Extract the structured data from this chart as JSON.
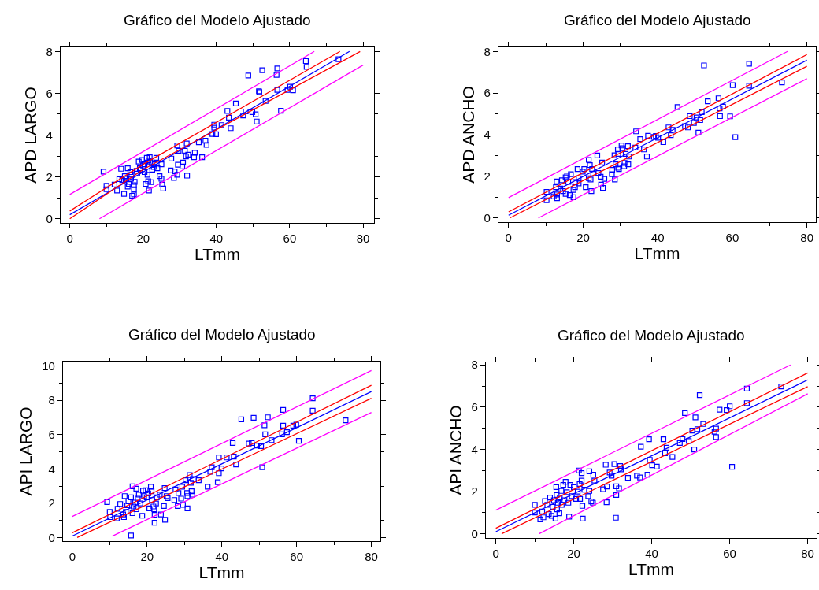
{
  "chart_data": [
    {
      "type": "scatter",
      "title": "Gráfico del Modelo Ajustado",
      "xlabel": "LTmm",
      "ylabel": "APD LARGO",
      "xlim": [
        -2.5,
        83
      ],
      "ylim": [
        -0.2,
        8.2
      ],
      "xticks": [
        0,
        20,
        40,
        60,
        80
      ],
      "yticks": [
        0,
        2,
        4,
        6,
        8
      ],
      "marker": "square",
      "grid": false,
      "series": [
        {
          "color": "#0000ff",
          "x": [
            9.2,
            10.0,
            10.0,
            12.2,
            12.9,
            13.5,
            14.0,
            14.8,
            15.0,
            15.2,
            15.8,
            16.1,
            16.5,
            17.0,
            17.5,
            17.5,
            17.5,
            17.7,
            18.2,
            18.8,
            19.1,
            19.7,
            20.0,
            20.4,
            20.7,
            21.0,
            21.2,
            21.4,
            21.6,
            21.8,
            21.9,
            22.2,
            22.5,
            22.9,
            23.6,
            23.9,
            24.5,
            25.0,
            25.0,
            25.2,
            25.5,
            27.5,
            27.7,
            28.4,
            28.6,
            29.3,
            29.3,
            29.5,
            29.7,
            30.7,
            30.9,
            31.4,
            31.7,
            31.9,
            32.0,
            32.3,
            33.9,
            34.1,
            35.2,
            36.1,
            37.0,
            37.3,
            38.9,
            39.4,
            39.4,
            39.9,
            41.4,
            43.0,
            43.4,
            43.9,
            45.3,
            47.3,
            48.0,
            48.7,
            49.8,
            50.7,
            51.0,
            51.6,
            51.7,
            52.5,
            53.4,
            56.4,
            56.6,
            56.6,
            57.6,
            59.4,
            60.1,
            60.9,
            64.4,
            64.6,
            73.3,
            14.3,
            15.4,
            16.8,
            18.4,
            19.3,
            20.4,
            21.5,
            22.4,
            23.2,
            15.8,
            16.7
          ],
          "values": [
            2.25,
            1.58,
            1.41,
            1.63,
            1.35,
            1.89,
            2.39,
            1.19,
            2.04,
            1.79,
            2.41,
            1.66,
            2.23,
            1.1,
            1.16,
            1.6,
            1.41,
            1.76,
            2.29,
            2.73,
            2.41,
            2.81,
            2.54,
            2.23,
            1.66,
            2.91,
            2.1,
            1.79,
            1.35,
            2.94,
            2.73,
            1.75,
            2.35,
            2.48,
            2.91,
            2.41,
            2.04,
            2.6,
            1.91,
            1.63,
            1.44,
            2.31,
            2.88,
            1.95,
            2.26,
            3.5,
            2.1,
            2.58,
            3.25,
            2.5,
            2.69,
            3.25,
            2.98,
            3.6,
            2.06,
            3.06,
            2.94,
            3.16,
            3.66,
            2.94,
            3.73,
            3.53,
            4.05,
            4.5,
            4.35,
            4.04,
            4.48,
            5.15,
            4.83,
            4.33,
            5.51,
            4.94,
            5.13,
            6.85,
            5.1,
            4.99,
            4.65,
            6.1,
            6.06,
            7.1,
            5.63,
            6.88,
            7.19,
            6.16,
            5.16,
            6.16,
            6.31,
            6.14,
            7.54,
            7.26,
            7.63,
            1.85,
            1.91,
            2.1,
            2.16,
            2.35,
            2.6,
            2.79,
            2.66,
            2.6,
            1.54,
            1.91
          ]
        },
        {
          "type": "line",
          "color": "#0000ff",
          "marker": "none",
          "x": [
            0,
            76.3
          ],
          "values": [
            0.19,
            8.0
          ]
        },
        {
          "type": "line",
          "color": "#ff0000",
          "marker": "none",
          "x": [
            0,
            20,
            73.7
          ],
          "values": [
            0.37,
            2.6,
            8.0
          ]
        },
        {
          "type": "line",
          "color": "#ff0000",
          "marker": "none",
          "x": [
            0,
            20,
            79.2
          ],
          "values": [
            0.0,
            2.35,
            8.0
          ]
        },
        {
          "type": "line",
          "color": "#ff00ff",
          "marker": "none",
          "x": [
            0,
            66.7
          ],
          "values": [
            1.16,
            8.0
          ]
        },
        {
          "type": "line",
          "color": "#ff00ff",
          "marker": "none",
          "x": [
            8.1,
            80
          ],
          "values": [
            0.0,
            7.35
          ]
        }
      ]
    },
    {
      "type": "scatter",
      "title": "Gráfico del Modelo Ajustado",
      "xlabel": "LTmm",
      "ylabel": "APD ANCHO",
      "xlim": [
        -2.7,
        82.4
      ],
      "ylim": [
        -0.2,
        8.2
      ],
      "xticks": [
        0,
        20,
        40,
        60,
        80
      ],
      "yticks": [
        0,
        2,
        4,
        6,
        8
      ],
      "marker": "square",
      "grid": false,
      "series": [
        {
          "color": "#0000ff",
          "x": [
            10.2,
            10.2,
            12.1,
            13.0,
            13.0,
            12.9,
            12.7,
            13.9,
            14.3,
            14.6,
            15.3,
            15.3,
            15.7,
            16.0,
            16.4,
            16.7,
            17.4,
            17.4,
            17.8,
            17.9,
            18.5,
            18.8,
            18.8,
            19.9,
            20.3,
            20.7,
            21.5,
            21.5,
            21.8,
            22.0,
            22.2,
            22.4,
            22.7,
            23.8,
            24.1,
            24.7,
            24.8,
            25.1,
            25.3,
            25.7,
            27.7,
            27.8,
            28.4,
            28.5,
            28.7,
            29.3,
            29.4,
            29.4,
            29.6,
            30.3,
            30.5,
            31.0,
            31.1,
            31.4,
            32.0,
            32.1,
            32.3,
            34.0,
            34.2,
            35.3,
            36.3,
            37.1,
            37.4,
            39.0,
            39.5,
            40.1,
            41.5,
            42.9,
            43.5,
            44.0,
            45.3,
            47.3,
            48.1,
            48.6,
            49.7,
            50.4,
            50.9,
            51.4,
            51.8,
            52.4,
            53.4,
            56.3,
            56.6,
            56.7,
            57.5,
            59.4,
            60.1,
            60.8,
            64.5,
            64.5,
            73.3
          ],
          "values": [
            1.25,
            0.85,
            1.04,
            0.95,
            1.13,
            1.75,
            1.48,
            1.41,
            1.81,
            1.29,
            1.16,
            1.95,
            2.04,
            1.73,
            1.1,
            2.1,
            1.0,
            1.35,
            1.48,
            1.73,
            2.35,
            1.66,
            1.91,
            2.23,
            2.35,
            1.48,
            2.79,
            1.91,
            2.54,
            1.85,
            1.29,
            2.35,
            2.13,
            3.0,
            2.16,
            1.98,
            1.6,
            2.66,
            1.44,
            1.88,
            2.1,
            2.31,
            3.01,
            1.85,
            2.58,
            3.29,
            3.08,
            2.41,
            2.35,
            3.48,
            3.35,
            2.48,
            2.64,
            3.08,
            3.45,
            2.58,
            2.95,
            3.38,
            4.16,
            3.79,
            3.29,
            2.95,
            3.95,
            3.89,
            3.94,
            3.85,
            3.64,
            4.35,
            3.98,
            4.23,
            5.33,
            4.41,
            4.35,
            4.89,
            4.56,
            4.83,
            4.1,
            4.7,
            5.08,
            7.33,
            5.6,
            5.75,
            5.26,
            4.89,
            5.35,
            4.88,
            6.38,
            3.88,
            7.41,
            6.35,
            6.51
          ]
        },
        {
          "type": "line",
          "color": "#0000ff",
          "marker": "none",
          "x": [
            0,
            80
          ],
          "values": [
            0.13,
            7.58
          ]
        },
        {
          "type": "line",
          "color": "#ff0000",
          "marker": "none",
          "x": [
            0,
            80
          ],
          "values": [
            0.29,
            7.85
          ]
        },
        {
          "type": "line",
          "color": "#ff0000",
          "marker": "none",
          "x": [
            0.35,
            80
          ],
          "values": [
            0.0,
            7.29
          ]
        },
        {
          "type": "line",
          "color": "#ff00ff",
          "marker": "none",
          "x": [
            0,
            74.8
          ],
          "values": [
            0.98,
            8.0
          ]
        },
        {
          "type": "line",
          "color": "#ff00ff",
          "marker": "none",
          "x": [
            8.0,
            80
          ],
          "values": [
            0.0,
            6.69
          ]
        }
      ]
    },
    {
      "type": "scatter",
      "title": "Gráfico del Modelo Ajustado",
      "xlabel": "LTmm",
      "ylabel": "API LARGO",
      "xlim": [
        -2.5,
        82.4
      ],
      "ylim": [
        -0.21,
        10.26
      ],
      "xticks": [
        0,
        20,
        40,
        60,
        80
      ],
      "yticks": [
        0,
        2,
        4,
        6,
        8,
        10
      ],
      "marker": "square",
      "grid": false,
      "series": [
        {
          "color": "#0000ff",
          "x": [
            9.3,
            10.0,
            10.1,
            11.9,
            12.1,
            12.8,
            14.0,
            13.6,
            13.8,
            14.3,
            14.7,
            15.0,
            15.7,
            15.7,
            16.1,
            16.1,
            16.4,
            16.8,
            17.1,
            17.1,
            17.5,
            17.8,
            18.2,
            18.7,
            18.9,
            19.2,
            19.6,
            19.9,
            20.3,
            20.6,
            21.0,
            21.2,
            21.3,
            21.7,
            21.9,
            22.0,
            22.0,
            22.4,
            22.6,
            23.4,
            23.7,
            24.5,
            24.7,
            24.8,
            25.2,
            25.5,
            27.3,
            27.6,
            28.2,
            28.4,
            29.1,
            29.4,
            29.6,
            30.3,
            30.7,
            30.8,
            30.8,
            31.4,
            31.7,
            31.9,
            32.1,
            32.2,
            33.8,
            36.2,
            36.9,
            37.3,
            38.9,
            39.2,
            39.2,
            39.9,
            41.3,
            42.9,
            43.2,
            43.8,
            45.2,
            47.2,
            48.0,
            48.5,
            49.4,
            50.5,
            50.8,
            51.4,
            51.6,
            52.3,
            53.3,
            56.1,
            56.4,
            56.4,
            57.4,
            59.1,
            59.9,
            60.6,
            64.3,
            64.3,
            73.1
          ],
          "values": [
            2.07,
            1.5,
            1.19,
            1.12,
            1.68,
            1.96,
            2.42,
            1.35,
            1.19,
            1.5,
            1.88,
            2.11,
            0.12,
            2.34,
            2.99,
            1.42,
            1.81,
            2.04,
            2.85,
            1.65,
            2.27,
            2.5,
            1.99,
            1.27,
            2.73,
            2.42,
            2.76,
            2.34,
            2.57,
            1.7,
            2.96,
            2.7,
            2.19,
            1.81,
            1.65,
            1.32,
            0.86,
            1.99,
            2.34,
            2.5,
            1.35,
            1.84,
            2.88,
            1.04,
            2.42,
            2.3,
            2.19,
            2.8,
            1.84,
            2.6,
            2.27,
            2.96,
            1.91,
            3.34,
            2.6,
            1.7,
            2.42,
            3.64,
            3.19,
            2.7,
            2.5,
            3.41,
            3.34,
            2.96,
            3.83,
            4.1,
            3.23,
            4.67,
            3.75,
            4.03,
            4.67,
            5.51,
            4.72,
            4.26,
            6.89,
            5.48,
            5.51,
            6.98,
            5.36,
            5.33,
            4.1,
            6.55,
            6.02,
            7.01,
            5.68,
            6.02,
            7.44,
            6.52,
            6.14,
            6.52,
            6.58,
            5.64,
            8.12,
            7.4,
            6.83
          ]
        },
        {
          "type": "line",
          "color": "#0000ff",
          "marker": "none",
          "x": [
            0,
            80
          ],
          "values": [
            0.09,
            8.51
          ]
        },
        {
          "type": "line",
          "color": "#ff0000",
          "marker": "none",
          "x": [
            0,
            80
          ],
          "values": [
            0.28,
            8.88
          ]
        },
        {
          "type": "line",
          "color": "#ff0000",
          "marker": "none",
          "x": [
            1.3,
            80
          ],
          "values": [
            0.0,
            8.12
          ]
        },
        {
          "type": "line",
          "color": "#ff00ff",
          "marker": "none",
          "x": [
            0,
            80
          ],
          "values": [
            1.23,
            9.74
          ]
        },
        {
          "type": "line",
          "color": "#ff00ff",
          "marker": "none",
          "x": [
            10.7,
            80
          ],
          "values": [
            0.08,
            7.29
          ]
        }
      ]
    },
    {
      "type": "scatter",
      "title": "Gráfico del Modelo Ajustado",
      "xlabel": "LTmm",
      "ylabel": "API ANCHO",
      "xlim": [
        -2.55,
        82.3
      ],
      "ylim": [
        -0.2,
        8.12
      ],
      "xticks": [
        0,
        20,
        40,
        60,
        80
      ],
      "yticks": [
        0,
        2,
        4,
        6,
        8
      ],
      "marker": "square",
      "grid": false,
      "series": [
        {
          "color": "#0000ff",
          "x": [
            10.0,
            10.0,
            11.4,
            11.9,
            12.6,
            12.2,
            13.2,
            13.6,
            13.9,
            14.3,
            14.6,
            14.9,
            15.3,
            15.5,
            15.6,
            15.7,
            15.9,
            16.3,
            16.4,
            16.8,
            16.9,
            17.3,
            17.6,
            17.9,
            18.2,
            18.6,
            18.8,
            19.1,
            19.5,
            20.0,
            20.6,
            21.0,
            21.3,
            21.5,
            21.6,
            22.0,
            22.0,
            22.2,
            22.3,
            22.7,
            23.7,
            24.0,
            24.0,
            24.5,
            24.9,
            25.0,
            25.3,
            27.5,
            28.2,
            28.4,
            28.5,
            29.2,
            29.7,
            30.4,
            30.8,
            30.9,
            30.9,
            31.6,
            31.9,
            32.1,
            33.9,
            36.2,
            37.0,
            37.2,
            38.9,
            39.3,
            39.5,
            40.1,
            41.3,
            43.0,
            43.4,
            43.8,
            45.3,
            47.2,
            47.9,
            48.5,
            49.5,
            50.4,
            50.9,
            51.2,
            51.7,
            52.3,
            53.2,
            56.1,
            56.5,
            56.5,
            57.4,
            59.2,
            60.0,
            60.6,
            64.4,
            64.4,
            73.2
          ],
          "values": [
            1.37,
            1.01,
            0.68,
            1.06,
            1.55,
            0.78,
            1.37,
            0.93,
            1.72,
            0.85,
            1.28,
            1.59,
            0.72,
            2.21,
            1.84,
            1.16,
            1.47,
            0.97,
            1.72,
            2.03,
            1.37,
            2.31,
            1.59,
            2.46,
            1.97,
            1.47,
            0.81,
            2.31,
            1.78,
            2.21,
            1.65,
            2.0,
            3.0,
            2.36,
            1.65,
            2.87,
            2.52,
            1.32,
            0.72,
            2.09,
            1.78,
            2.96,
            2.03,
            1.53,
            1.47,
            2.8,
            2.52,
            2.11,
            3.27,
            1.49,
            2.24,
            2.9,
            2.75,
            3.3,
            0.76,
            1.84,
            2.25,
            2.15,
            3.21,
            3.05,
            2.65,
            2.75,
            2.67,
            4.12,
            2.8,
            4.48,
            3.5,
            3.25,
            3.18,
            4.48,
            3.81,
            4.08,
            3.64,
            4.3,
            4.49,
            5.72,
            4.39,
            4.89,
            3.99,
            5.51,
            4.95,
            6.57,
            5.2,
            4.83,
            4.98,
            4.58,
            5.88,
            5.86,
            6.04,
            3.17,
            6.88,
            6.19,
            6.98
          ]
        },
        {
          "type": "line",
          "color": "#0000ff",
          "marker": "none",
          "x": [
            0,
            80
          ],
          "values": [
            0.1,
            7.29
          ]
        },
        {
          "type": "line",
          "color": "#ff0000",
          "marker": "none",
          "x": [
            0,
            80
          ],
          "values": [
            0.26,
            7.62
          ]
        },
        {
          "type": "line",
          "color": "#ff0000",
          "marker": "none",
          "x": [
            1.5,
            80
          ],
          "values": [
            0.0,
            6.97
          ]
        },
        {
          "type": "line",
          "color": "#ff00ff",
          "marker": "none",
          "x": [
            0,
            75.6
          ],
          "values": [
            1.12,
            8.0
          ]
        },
        {
          "type": "line",
          "color": "#ff00ff",
          "marker": "none",
          "x": [
            11.1,
            80
          ],
          "values": [
            0.0,
            6.63
          ]
        }
      ]
    }
  ]
}
